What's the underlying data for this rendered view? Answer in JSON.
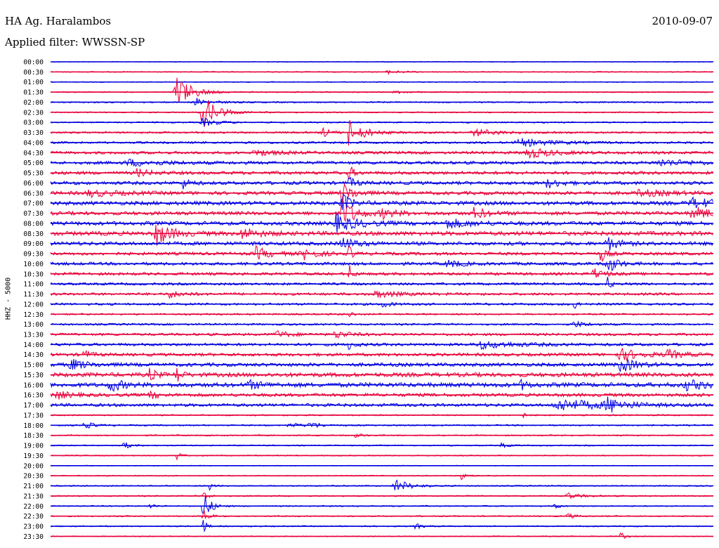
{
  "header": {
    "station": "HA Ag. Haralambos",
    "date": "2010-09-07",
    "filter": "Applied filter: WWSSN-SP"
  },
  "chart_data": {
    "type": "line",
    "title": "HA Ag. Haralambos",
    "subtitle": "Applied filter: WWSSN-SP",
    "date": "2010-09-07",
    "ylabel": "HHZ - 5000",
    "xlabel": "",
    "colors": [
      "#0000e0",
      "#e8003a"
    ],
    "grid": false,
    "rows": [
      {
        "label": "00:00",
        "color": "#0000e0",
        "noise": 0.6,
        "events": []
      },
      {
        "label": "00:30",
        "color": "#e8003a",
        "noise": 0.7,
        "events": [
          {
            "t": 0.51,
            "amp": 2.5,
            "width": 0.02
          }
        ]
      },
      {
        "label": "01:00",
        "color": "#0000e0",
        "noise": 0.7,
        "events": []
      },
      {
        "label": "01:30",
        "color": "#e8003a",
        "noise": 0.8,
        "events": [
          {
            "t": 0.19,
            "amp": 26,
            "width": 0.02
          },
          {
            "t": 0.52,
            "amp": 2,
            "width": 0.02
          }
        ]
      },
      {
        "label": "02:00",
        "color": "#0000e0",
        "noise": 1.0,
        "events": [
          {
            "t": 0.22,
            "amp": 6,
            "width": 0.02
          }
        ]
      },
      {
        "label": "02:30",
        "color": "#e8003a",
        "noise": 0.9,
        "events": [
          {
            "t": 0.23,
            "amp": 24,
            "width": 0.02
          }
        ]
      },
      {
        "label": "03:00",
        "color": "#0000e0",
        "noise": 1.0,
        "events": [
          {
            "t": 0.23,
            "amp": 6,
            "width": 0.02
          }
        ]
      },
      {
        "label": "03:30",
        "color": "#e8003a",
        "noise": 1.3,
        "events": [
          {
            "t": 0.41,
            "amp": 8,
            "width": 0.01
          },
          {
            "t": 0.45,
            "amp": 22,
            "width": 0.008
          },
          {
            "t": 0.47,
            "amp": 7,
            "width": 0.02
          },
          {
            "t": 0.64,
            "amp": 5,
            "width": 0.03
          }
        ]
      },
      {
        "label": "04:00",
        "color": "#0000e0",
        "noise": 1.5,
        "events": [
          {
            "t": 0.71,
            "amp": 5,
            "width": 0.05
          }
        ]
      },
      {
        "label": "04:30",
        "color": "#e8003a",
        "noise": 2.0,
        "events": [
          {
            "t": 0.31,
            "amp": 4,
            "width": 0.03
          },
          {
            "t": 0.72,
            "amp": 8,
            "width": 0.03
          }
        ]
      },
      {
        "label": "05:00",
        "color": "#0000e0",
        "noise": 2.2,
        "events": [
          {
            "t": 0.12,
            "amp": 4,
            "width": 0.05
          },
          {
            "t": 0.92,
            "amp": 4,
            "width": 0.05
          }
        ]
      },
      {
        "label": "05:30",
        "color": "#e8003a",
        "noise": 2.3,
        "events": [
          {
            "t": 0.13,
            "amp": 5,
            "width": 0.02
          },
          {
            "t": 0.45,
            "amp": 12,
            "width": 0.006
          }
        ]
      },
      {
        "label": "06:00",
        "color": "#0000e0",
        "noise": 2.4,
        "events": [
          {
            "t": 0.2,
            "amp": 7,
            "width": 0.01
          },
          {
            "t": 0.45,
            "amp": 8,
            "width": 0.01
          },
          {
            "t": 0.75,
            "amp": 6,
            "width": 0.02
          }
        ]
      },
      {
        "label": "06:30",
        "color": "#e8003a",
        "noise": 2.5,
        "events": [
          {
            "t": 0.06,
            "amp": 4,
            "width": 0.04
          },
          {
            "t": 0.44,
            "amp": 14,
            "width": 0.015
          },
          {
            "t": 0.89,
            "amp": 4,
            "width": 0.04
          }
        ]
      },
      {
        "label": "07:00",
        "color": "#0000e0",
        "noise": 2.8,
        "events": [
          {
            "t": 0.44,
            "amp": 14,
            "width": 0.012
          },
          {
            "t": 0.97,
            "amp": 6,
            "width": 0.04
          }
        ]
      },
      {
        "label": "07:30",
        "color": "#e8003a",
        "noise": 2.6,
        "events": [
          {
            "t": 0.44,
            "amp": 20,
            "width": 0.018
          },
          {
            "t": 0.5,
            "amp": 6,
            "width": 0.02
          },
          {
            "t": 0.64,
            "amp": 9,
            "width": 0.015
          },
          {
            "t": 0.97,
            "amp": 8,
            "width": 0.03
          }
        ]
      },
      {
        "label": "08:00",
        "color": "#0000e0",
        "noise": 2.8,
        "events": [
          {
            "t": 0.43,
            "amp": 12,
            "width": 0.03
          },
          {
            "t": 0.6,
            "amp": 6,
            "width": 0.03
          }
        ]
      },
      {
        "label": "08:30",
        "color": "#e8003a",
        "noise": 3.0,
        "events": [
          {
            "t": 0.16,
            "amp": 16,
            "width": 0.02
          },
          {
            "t": 0.29,
            "amp": 8,
            "width": 0.02
          }
        ]
      },
      {
        "label": "09:00",
        "color": "#0000e0",
        "noise": 2.6,
        "events": [
          {
            "t": 0.44,
            "amp": 8,
            "width": 0.02
          },
          {
            "t": 0.84,
            "amp": 10,
            "width": 0.015
          }
        ]
      },
      {
        "label": "09:30",
        "color": "#e8003a",
        "noise": 2.2,
        "events": [
          {
            "t": 0.31,
            "amp": 9,
            "width": 0.02
          },
          {
            "t": 0.38,
            "amp": 8,
            "width": 0.02
          },
          {
            "t": 0.45,
            "amp": 12,
            "width": 0.005
          },
          {
            "t": 0.83,
            "amp": 12,
            "width": 0.008
          }
        ]
      },
      {
        "label": "10:00",
        "color": "#0000e0",
        "noise": 2.2,
        "events": [
          {
            "t": 0.6,
            "amp": 5,
            "width": 0.02
          },
          {
            "t": 0.84,
            "amp": 16,
            "width": 0.012
          }
        ]
      },
      {
        "label": "10:30",
        "color": "#e8003a",
        "noise": 2.0,
        "events": [
          {
            "t": 0.45,
            "amp": 14,
            "width": 0.005
          },
          {
            "t": 0.82,
            "amp": 7,
            "width": 0.015
          }
        ]
      },
      {
        "label": "11:00",
        "color": "#0000e0",
        "noise": 1.8,
        "events": [
          {
            "t": 0.84,
            "amp": 10,
            "width": 0.005
          }
        ]
      },
      {
        "label": "11:30",
        "color": "#e8003a",
        "noise": 1.8,
        "events": [
          {
            "t": 0.18,
            "amp": 5,
            "width": 0.02
          },
          {
            "t": 0.49,
            "amp": 5,
            "width": 0.03
          }
        ]
      },
      {
        "label": "12:00",
        "color": "#0000e0",
        "noise": 1.6,
        "events": [
          {
            "t": 0.5,
            "amp": 6,
            "width": 0.01
          },
          {
            "t": 0.79,
            "amp": 8,
            "width": 0.005
          }
        ]
      },
      {
        "label": "12:30",
        "color": "#e8003a",
        "noise": 1.2,
        "events": [
          {
            "t": 0.45,
            "amp": 6,
            "width": 0.005
          }
        ]
      },
      {
        "label": "13:00",
        "color": "#0000e0",
        "noise": 1.4,
        "events": [
          {
            "t": 0.79,
            "amp": 4,
            "width": 0.02
          }
        ]
      },
      {
        "label": "13:30",
        "color": "#e8003a",
        "noise": 1.8,
        "events": [
          {
            "t": 0.34,
            "amp": 5,
            "width": 0.02
          },
          {
            "t": 0.43,
            "amp": 5,
            "width": 0.02
          }
        ]
      },
      {
        "label": "14:00",
        "color": "#0000e0",
        "noise": 2.0,
        "events": [
          {
            "t": 0.45,
            "amp": 6,
            "width": 0.01
          },
          {
            "t": 0.65,
            "amp": 5,
            "width": 0.05
          }
        ]
      },
      {
        "label": "14:30",
        "color": "#e8003a",
        "noise": 2.2,
        "events": [
          {
            "t": 0.05,
            "amp": 6,
            "width": 0.01
          },
          {
            "t": 0.86,
            "amp": 8,
            "width": 0.03
          },
          {
            "t": 0.93,
            "amp": 6,
            "width": 0.02
          }
        ]
      },
      {
        "label": "15:00",
        "color": "#0000e0",
        "noise": 2.6,
        "events": [
          {
            "t": 0.03,
            "amp": 8,
            "width": 0.02
          },
          {
            "t": 0.86,
            "amp": 10,
            "width": 0.02
          }
        ]
      },
      {
        "label": "15:30",
        "color": "#e8003a",
        "noise": 3.0,
        "events": [
          {
            "t": 0.15,
            "amp": 10,
            "width": 0.008
          },
          {
            "t": 0.19,
            "amp": 14,
            "width": 0.006
          }
        ]
      },
      {
        "label": "16:00",
        "color": "#0000e0",
        "noise": 3.2,
        "events": [
          {
            "t": 0.09,
            "amp": 10,
            "width": 0.015
          },
          {
            "t": 0.3,
            "amp": 5,
            "width": 0.02
          },
          {
            "t": 0.71,
            "amp": 6,
            "width": 0.01
          },
          {
            "t": 0.96,
            "amp": 6,
            "width": 0.03
          }
        ]
      },
      {
        "label": "16:30",
        "color": "#e8003a",
        "noise": 2.4,
        "events": [
          {
            "t": 0.01,
            "amp": 5,
            "width": 0.02
          },
          {
            "t": 0.15,
            "amp": 6,
            "width": 0.01
          }
        ]
      },
      {
        "label": "17:00",
        "color": "#0000e0",
        "noise": 2.2,
        "events": [
          {
            "t": 0.77,
            "amp": 8,
            "width": 0.06
          },
          {
            "t": 0.84,
            "amp": 10,
            "width": 0.02
          }
        ]
      },
      {
        "label": "17:30",
        "color": "#e8003a",
        "noise": 1.0,
        "events": [
          {
            "t": 0.71,
            "amp": 6,
            "width": 0.005
          }
        ]
      },
      {
        "label": "18:00",
        "color": "#0000e0",
        "noise": 1.0,
        "events": [
          {
            "t": 0.05,
            "amp": 5,
            "width": 0.015
          },
          {
            "t": 0.36,
            "amp": 4,
            "width": 0.015
          },
          {
            "t": 0.39,
            "amp": 5,
            "width": 0.015
          }
        ]
      },
      {
        "label": "18:30",
        "color": "#e8003a",
        "noise": 0.9,
        "events": [
          {
            "t": 0.46,
            "amp": 3,
            "width": 0.01
          }
        ]
      },
      {
        "label": "19:00",
        "color": "#0000e0",
        "noise": 0.9,
        "events": [
          {
            "t": 0.11,
            "amp": 6,
            "width": 0.008
          },
          {
            "t": 0.68,
            "amp": 3,
            "width": 0.01
          }
        ]
      },
      {
        "label": "19:30",
        "color": "#e8003a",
        "noise": 0.8,
        "events": [
          {
            "t": 0.19,
            "amp": 8,
            "width": 0.005
          }
        ]
      },
      {
        "label": "20:00",
        "color": "#0000e0",
        "noise": 0.5,
        "events": []
      },
      {
        "label": "20:30",
        "color": "#e8003a",
        "noise": 0.7,
        "events": [
          {
            "t": 0.62,
            "amp": 8,
            "width": 0.006
          }
        ]
      },
      {
        "label": "21:00",
        "color": "#0000e0",
        "noise": 0.9,
        "events": [
          {
            "t": 0.24,
            "amp": 6,
            "width": 0.005
          },
          {
            "t": 0.52,
            "amp": 10,
            "width": 0.02
          }
        ]
      },
      {
        "label": "21:30",
        "color": "#e8003a",
        "noise": 0.9,
        "events": [
          {
            "t": 0.23,
            "amp": 12,
            "width": 0.005
          },
          {
            "t": 0.78,
            "amp": 4,
            "width": 0.02
          }
        ]
      },
      {
        "label": "22:00",
        "color": "#0000e0",
        "noise": 0.9,
        "events": [
          {
            "t": 0.15,
            "amp": 6,
            "width": 0.005
          },
          {
            "t": 0.23,
            "amp": 22,
            "width": 0.01
          },
          {
            "t": 0.76,
            "amp": 5,
            "width": 0.006
          }
        ]
      },
      {
        "label": "22:30",
        "color": "#e8003a",
        "noise": 0.9,
        "events": [
          {
            "t": 0.23,
            "amp": 10,
            "width": 0.008
          },
          {
            "t": 0.78,
            "amp": 4,
            "width": 0.01
          }
        ]
      },
      {
        "label": "23:00",
        "color": "#0000e0",
        "noise": 0.9,
        "events": [
          {
            "t": 0.23,
            "amp": 12,
            "width": 0.005
          },
          {
            "t": 0.55,
            "amp": 4,
            "width": 0.01
          }
        ]
      },
      {
        "label": "23:30",
        "color": "#e8003a",
        "noise": 0.7,
        "events": [
          {
            "t": 0.86,
            "amp": 6,
            "width": 0.006
          }
        ]
      }
    ]
  }
}
